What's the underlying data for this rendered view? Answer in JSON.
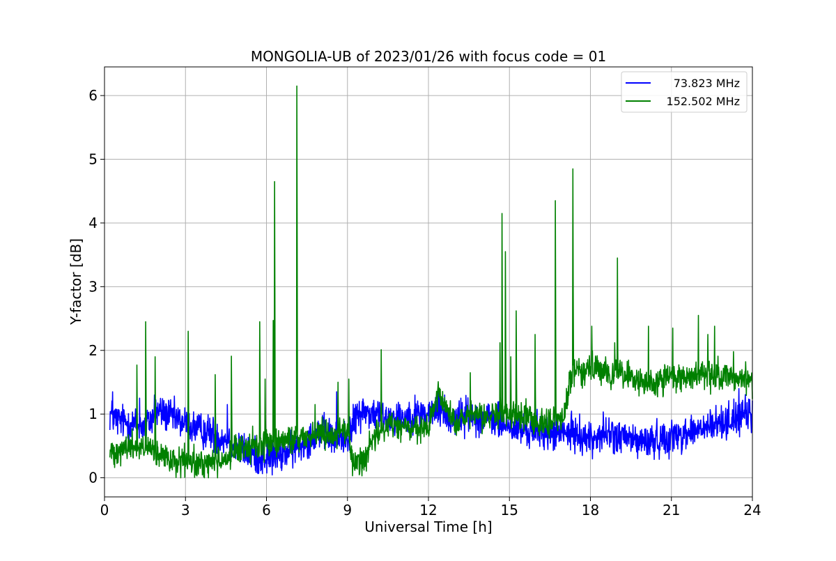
{
  "chart_data": {
    "type": "line",
    "title": "MONGOLIA-UB of 2023/01/26 with focus code = 01",
    "xlabel": "Universal Time [h]",
    "ylabel": "Y-factor [dB]",
    "xlim": [
      0,
      24
    ],
    "ylim": [
      -0.3,
      6.45
    ],
    "x_ticks": [
      0,
      3,
      6,
      9,
      12,
      15,
      18,
      21,
      24
    ],
    "x_tick_labels": [
      "0",
      "3",
      "6",
      "9",
      "12",
      "15",
      "18",
      "21",
      "24"
    ],
    "y_ticks": [
      0,
      1,
      2,
      3,
      4,
      5,
      6
    ],
    "y_tick_labels": [
      "0",
      "1",
      "2",
      "3",
      "4",
      "5",
      "6"
    ],
    "grid": true,
    "legend_position": "top-right",
    "series": [
      {
        "name": "73.823 MHz",
        "color": "#0000ff",
        "noise": 0.17,
        "x": [
          0.2,
          0.5,
          1.0,
          1.5,
          2.0,
          2.5,
          3.0,
          3.5,
          4.0,
          4.5,
          5.0,
          5.5,
          6.0,
          6.5,
          7.0,
          7.5,
          8.0,
          8.5,
          9.0,
          9.5,
          10.0,
          10.5,
          11.0,
          11.5,
          12.0,
          12.5,
          12.8,
          13.5,
          14.0,
          14.5,
          15.0,
          15.5,
          16.0,
          16.5,
          17.0,
          17.5,
          18.0,
          18.5,
          19.0,
          19.5,
          20.0,
          20.5,
          21.0,
          21.5,
          22.0,
          22.5,
          23.0,
          23.5,
          24.0
        ],
        "y": [
          1.0,
          0.9,
          0.85,
          0.8,
          1.05,
          0.95,
          0.85,
          0.75,
          0.7,
          0.6,
          0.45,
          0.35,
          0.3,
          0.35,
          0.45,
          0.6,
          0.75,
          0.6,
          0.65,
          1.05,
          1.0,
          0.95,
          0.95,
          1.0,
          1.0,
          1.1,
          0.9,
          1.0,
          0.95,
          0.9,
          0.8,
          0.75,
          0.75,
          0.7,
          0.7,
          0.7,
          0.6,
          0.7,
          0.65,
          0.6,
          0.55,
          0.6,
          0.65,
          0.7,
          0.75,
          0.8,
          0.9,
          0.95,
          1.0
        ],
        "spikes": [
          [
            0.3,
            1.35
          ],
          [
            1.3,
            1.25
          ],
          [
            1.85,
            1.3
          ],
          [
            4.55,
            1.15
          ],
          [
            8.6,
            1.35
          ],
          [
            9.3,
            1.15
          ],
          [
            12.4,
            1.3
          ],
          [
            13.2,
            1.25
          ],
          [
            23.5,
            1.4
          ]
        ]
      },
      {
        "name": "152.502 MHz",
        "color": "#008000",
        "noise": 0.14,
        "x": [
          0.2,
          0.5,
          1.0,
          1.5,
          2.0,
          2.5,
          3.0,
          3.5,
          4.0,
          4.5,
          5.0,
          5.5,
          6.0,
          6.5,
          7.0,
          7.5,
          8.0,
          8.5,
          9.0,
          9.2,
          9.5,
          10.0,
          10.5,
          11.0,
          11.5,
          12.0,
          12.3,
          12.7,
          13.0,
          13.5,
          14.0,
          14.5,
          15.0,
          15.5,
          16.0,
          16.5,
          17.0,
          17.3,
          17.5,
          18.0,
          18.5,
          19.0,
          19.5,
          20.0,
          20.5,
          21.0,
          21.5,
          22.0,
          22.5,
          23.0,
          23.5,
          24.0
        ],
        "y": [
          0.4,
          0.45,
          0.5,
          0.45,
          0.35,
          0.25,
          0.25,
          0.2,
          0.25,
          0.3,
          0.45,
          0.5,
          0.55,
          0.55,
          0.6,
          0.65,
          0.7,
          0.7,
          0.75,
          0.25,
          0.25,
          0.6,
          0.85,
          0.8,
          0.75,
          0.75,
          1.3,
          1.1,
          0.85,
          0.95,
          0.95,
          1.0,
          0.95,
          1.0,
          0.9,
          0.9,
          0.9,
          1.65,
          1.7,
          1.7,
          1.65,
          1.65,
          1.6,
          1.45,
          1.5,
          1.55,
          1.6,
          1.6,
          1.6,
          1.6,
          1.55,
          1.55
        ],
        "spikes": [
          [
            1.2,
            1.77
          ],
          [
            1.52,
            2.45
          ],
          [
            1.88,
            1.9
          ],
          [
            3.1,
            2.3
          ],
          [
            4.1,
            1.62
          ],
          [
            4.7,
            1.91
          ],
          [
            5.75,
            2.45
          ],
          [
            5.95,
            1.55
          ],
          [
            6.25,
            2.47
          ],
          [
            6.3,
            4.65
          ],
          [
            7.12,
            6.15
          ],
          [
            7.8,
            1.15
          ],
          [
            8.65,
            1.5
          ],
          [
            9.05,
            1.55
          ],
          [
            10.25,
            2.01
          ],
          [
            13.55,
            1.65
          ],
          [
            14.65,
            2.12
          ],
          [
            14.72,
            4.15
          ],
          [
            14.85,
            3.55
          ],
          [
            15.05,
            1.9
          ],
          [
            15.25,
            2.62
          ],
          [
            15.95,
            2.25
          ],
          [
            16.7,
            4.35
          ],
          [
            17.35,
            4.85
          ],
          [
            18.05,
            2.38
          ],
          [
            18.9,
            2.12
          ],
          [
            19.0,
            3.45
          ],
          [
            20.15,
            2.38
          ],
          [
            21.05,
            2.35
          ],
          [
            22.0,
            2.55
          ],
          [
            22.35,
            2.25
          ],
          [
            22.6,
            2.38
          ],
          [
            23.3,
            1.98
          ]
        ]
      }
    ]
  }
}
